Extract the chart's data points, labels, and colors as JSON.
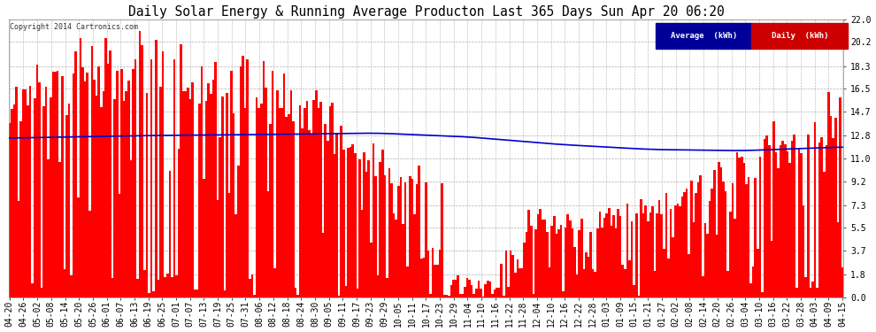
{
  "title": "Daily Solar Energy & Running Average Producton Last 365 Days Sun Apr 20 06:20",
  "copyright": "Copyright 2014 Cartronics.com",
  "yticks": [
    0.0,
    1.8,
    3.7,
    5.5,
    7.3,
    9.2,
    11.0,
    12.8,
    14.7,
    16.5,
    18.3,
    20.2,
    22.0
  ],
  "ylim": [
    0.0,
    22.0
  ],
  "bar_color": "#ff0000",
  "avg_color": "#0000cc",
  "bg_color": "#ffffff",
  "grid_color": "#b0b0b0",
  "legend_avg_bg": "#000099",
  "legend_daily_bg": "#cc0000",
  "title_fontsize": 10.5,
  "tick_fontsize": 7,
  "date_labels": [
    "04-20",
    "04-26",
    "05-02",
    "05-08",
    "05-14",
    "05-20",
    "05-26",
    "06-01",
    "06-07",
    "06-13",
    "06-19",
    "06-25",
    "07-01",
    "07-07",
    "07-13",
    "07-19",
    "07-25",
    "07-31",
    "08-06",
    "08-12",
    "08-18",
    "08-24",
    "08-30",
    "09-05",
    "09-11",
    "09-17",
    "09-23",
    "09-29",
    "10-05",
    "10-11",
    "10-17",
    "10-23",
    "10-29",
    "11-04",
    "11-10",
    "11-16",
    "11-22",
    "11-28",
    "12-04",
    "12-10",
    "12-16",
    "12-22",
    "12-28",
    "01-03",
    "01-09",
    "01-15",
    "01-21",
    "01-27",
    "02-02",
    "02-08",
    "02-14",
    "02-20",
    "02-26",
    "03-04",
    "03-10",
    "03-16",
    "03-22",
    "03-28",
    "04-03",
    "04-09",
    "04-15"
  ],
  "avg_line_x": [
    0,
    60,
    120,
    160,
    200,
    240,
    280,
    320,
    364
  ],
  "avg_line_y": [
    12.6,
    12.8,
    12.9,
    13.0,
    12.7,
    12.1,
    11.7,
    11.6,
    11.9
  ]
}
